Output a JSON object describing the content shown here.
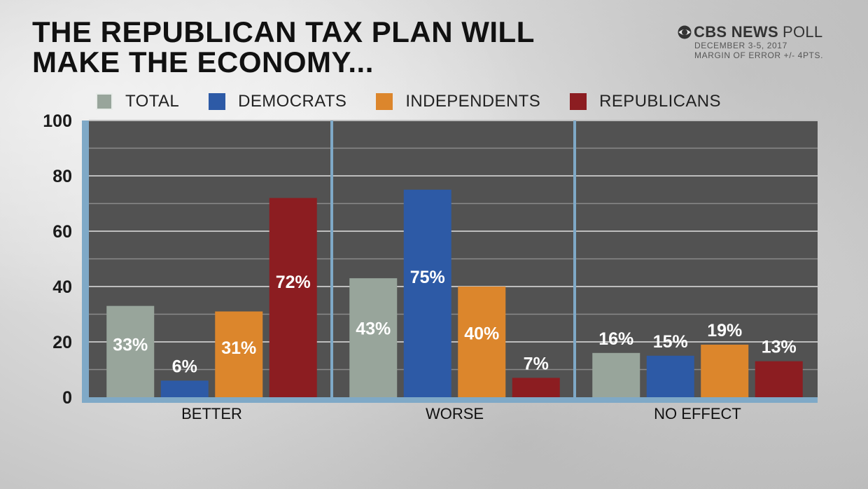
{
  "title_lines": [
    "THE REPUBLICAN TAX PLAN WILL",
    "MAKE THE ECONOMY..."
  ],
  "brand": {
    "name": "CBS NEWS",
    "suffix": "POLL",
    "logo_icon": "cbs-eye-icon"
  },
  "meta_lines": [
    "DECEMBER 3-5, 2017",
    "MARGIN OF ERROR +/- 4PTS."
  ],
  "chart_data": {
    "type": "bar",
    "title": "THE REPUBLICAN TAX PLAN WILL MAKE THE ECONOMY...",
    "categories": [
      "BETTER",
      "WORSE",
      "NO EFFECT"
    ],
    "series": [
      {
        "name": "TOTAL",
        "color": "#98a59b",
        "values": [
          33,
          43,
          16
        ],
        "labels": [
          "33%",
          "43%",
          "16%"
        ]
      },
      {
        "name": "DEMOCRATS",
        "color": "#2d5aa6",
        "values": [
          6,
          75,
          15
        ],
        "labels": [
          "6%",
          "75%",
          "15%"
        ]
      },
      {
        "name": "INDEPENDENTS",
        "color": "#dc862c",
        "values": [
          31,
          40,
          19
        ],
        "labels": [
          "31%",
          "40%",
          "19%"
        ]
      },
      {
        "name": "REPUBLICANS",
        "color": "#8c1d21",
        "values": [
          72,
          7,
          13
        ],
        "labels": [
          "72%",
          "7%",
          "13%"
        ]
      }
    ],
    "yticks": [
      0,
      20,
      40,
      60,
      80,
      100
    ],
    "ylim": [
      0,
      100
    ],
    "grid": true,
    "legend_position": "top"
  }
}
